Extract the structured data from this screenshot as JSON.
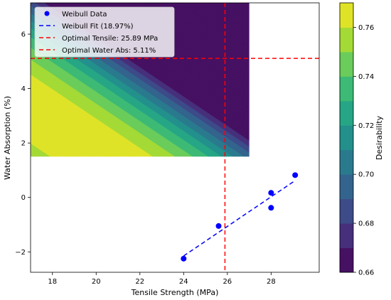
{
  "chart_data": {
    "type": "scatter",
    "xlabel": "Tensile Strength (MPa)",
    "ylabel": "Water Absorption (%)",
    "xlim": [
      17,
      30.2
    ],
    "ylim": [
      -2.75,
      7.15
    ],
    "xticks": [
      18,
      20,
      22,
      24,
      26,
      28
    ],
    "yticks": [
      -2,
      0,
      2,
      4,
      6
    ],
    "grid": false,
    "legend_position": "top-left",
    "series": [
      {
        "name": "Weibull Data",
        "kind": "scatter",
        "color": "#0000ff",
        "points": [
          [
            24.0,
            -2.25
          ],
          [
            25.6,
            -1.05
          ],
          [
            28.0,
            0.17
          ],
          [
            28.0,
            -0.38
          ],
          [
            29.1,
            0.82
          ]
        ]
      },
      {
        "name": "Weibull Fit (18.97%)",
        "kind": "line",
        "style": "dashed",
        "color": "#0000ff",
        "points": [
          [
            24.0,
            -2.15
          ],
          [
            29.1,
            0.62
          ]
        ]
      }
    ],
    "reference_lines": [
      {
        "name": "Optimal Tensile: 25.89 MPa",
        "orientation": "vertical",
        "value": 25.89,
        "color": "#ff0000",
        "style": "dashed"
      },
      {
        "name": "Optimal Water Abs: 5.11%",
        "orientation": "horizontal",
        "value": 5.11,
        "color": "#ff0000",
        "style": "dashed"
      }
    ],
    "contour": {
      "x_range": [
        17,
        27
      ],
      "y_range": [
        1.5,
        7.15
      ],
      "colormap": "viridis",
      "levels": [
        0.66,
        0.67,
        0.68,
        0.69,
        0.7,
        0.71,
        0.72,
        0.73,
        0.74,
        0.75,
        0.76,
        0.77
      ],
      "colorbar_label": "Desirability",
      "colorbar_ticks": [
        0.66,
        0.68,
        0.7,
        0.72,
        0.74,
        0.76
      ]
    }
  }
}
